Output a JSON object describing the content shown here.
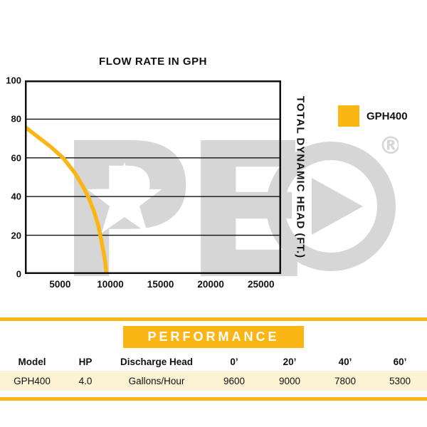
{
  "colors": {
    "accent": "#FBB515",
    "row_bg": "#FCF3D4",
    "watermark": "#8F8F8F"
  },
  "chart": {
    "title": "FLOW RATE IN GPH",
    "right_axis_label": "TOTAL DYNAMIC HEAD (FT.)",
    "legend_label": "GPH400"
  },
  "chart_data": {
    "type": "line",
    "title": "FLOW RATE IN GPH",
    "xlabel": "FLOW RATE IN GPH",
    "ylabel": "TOTAL DYNAMIC HEAD (FT.)",
    "xlim": [
      1500,
      27000
    ],
    "ylim": [
      0,
      100
    ],
    "x_ticks": [
      5000,
      10000,
      15000,
      20000,
      25000
    ],
    "y_ticks": [
      0,
      20,
      40,
      60,
      80,
      100
    ],
    "grid": "horizontal",
    "legend_position": "right",
    "series": [
      {
        "name": "GPH400",
        "color": "#FBB515",
        "points": [
          [
            1500,
            76
          ],
          [
            2500,
            72
          ],
          [
            4000,
            66
          ],
          [
            5300,
            60
          ],
          [
            6500,
            52
          ],
          [
            7300,
            45
          ],
          [
            7800,
            40
          ],
          [
            8400,
            32
          ],
          [
            8800,
            25
          ],
          [
            9000,
            20
          ],
          [
            9300,
            12
          ],
          [
            9500,
            6
          ],
          [
            9600,
            0
          ]
        ]
      }
    ]
  },
  "watermark": {
    "letters": "PE",
    "registered": "®"
  },
  "table": {
    "title": "PERFORMANCE",
    "headers": [
      "Model",
      "HP",
      "Discharge Head",
      "0’",
      "20’",
      "40’",
      "60’"
    ],
    "rows": [
      [
        "GPH400",
        "4.0",
        "Gallons/Hour",
        "9600",
        "9000",
        "7800",
        "5300"
      ]
    ]
  }
}
